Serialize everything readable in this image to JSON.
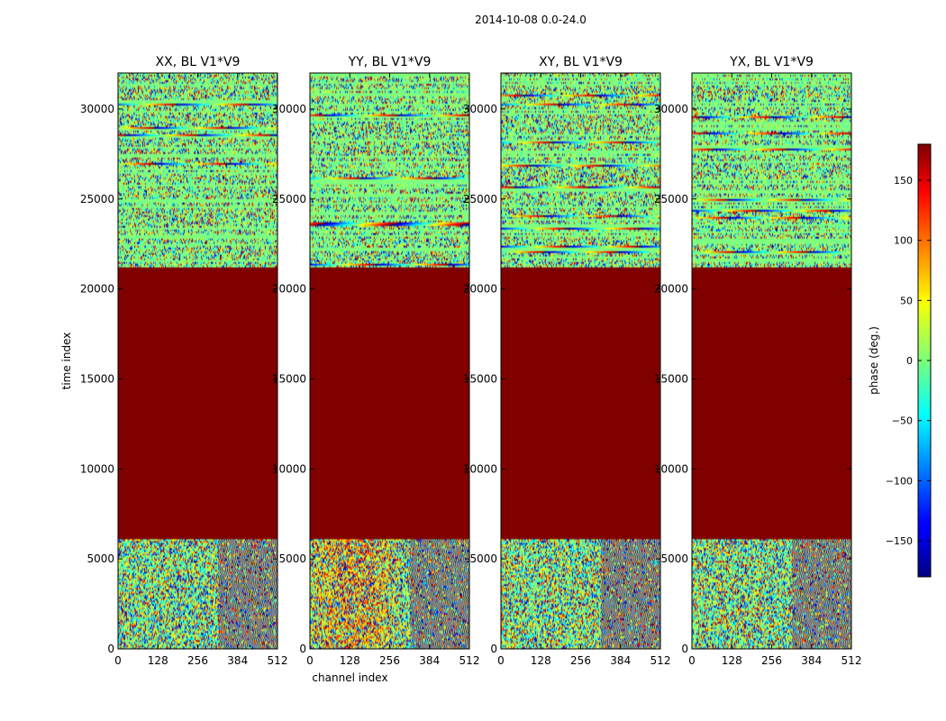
{
  "figure": {
    "suptitle": "2014-10-08 0.0-24.0"
  },
  "chart_data": {
    "type": "heatmap",
    "panels": [
      {
        "title": "XX, BL V1*V9",
        "xlabel": "",
        "ylabel": "time index",
        "show_ytick_labels": true,
        "seed": 11
      },
      {
        "title": "YY, BL V1*V9",
        "xlabel": "channel index",
        "ylabel": "",
        "show_ytick_labels": true,
        "seed": 23
      },
      {
        "title": "XY, BL V1*V9",
        "xlabel": "",
        "ylabel": "",
        "show_ytick_labels": true,
        "seed": 37
      },
      {
        "title": "YX, BL V1*V9",
        "xlabel": "",
        "ylabel": "",
        "show_ytick_labels": true,
        "seed": 53
      }
    ],
    "xlim": [
      0,
      512
    ],
    "ylim": [
      0,
      32000
    ],
    "xticks": [
      0,
      128,
      256,
      384,
      512
    ],
    "yticks": [
      0,
      5000,
      10000,
      15000,
      20000,
      25000,
      30000
    ],
    "regions": [
      {
        "y_from": 0,
        "y_to": 6100,
        "pattern": "noisy-phase"
      },
      {
        "y_from": 6100,
        "y_to": 21200,
        "pattern": "constant",
        "value": 180
      },
      {
        "y_from": 21200,
        "y_to": 32000,
        "pattern": "striped-phase"
      }
    ],
    "colorbar": {
      "label": "phase (deg.)",
      "range": [
        -180,
        180
      ],
      "ticks": [
        -150,
        -100,
        -50,
        0,
        50,
        100,
        150
      ],
      "colormap": "jet"
    }
  }
}
